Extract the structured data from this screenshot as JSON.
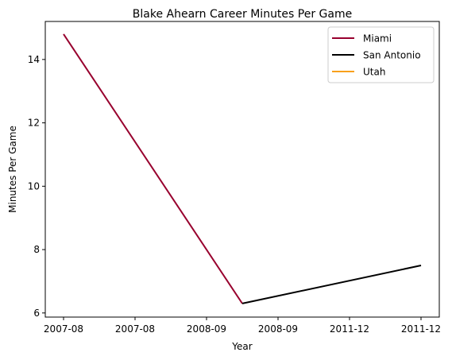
{
  "chart_data": {
    "type": "line",
    "title": "Blake Ahearn Career Minutes Per Game",
    "xlabel": "Year",
    "ylabel": "Minutes Per Game",
    "x_tick_labels": [
      "2007-08",
      "2007-08",
      "2008-09",
      "2008-09",
      "2011-12",
      "2011-12"
    ],
    "x_index_range": [
      0,
      5
    ],
    "ylim": [
      5.87,
      15.2
    ],
    "y_ticks": [
      6,
      8,
      10,
      12,
      14
    ],
    "grid": false,
    "legend_position": "top-right",
    "series": [
      {
        "name": "Miami",
        "color": "#98002E",
        "points": [
          [
            0,
            14.8
          ],
          [
            2.5,
            6.3
          ]
        ]
      },
      {
        "name": "San Antonio",
        "color": "#000000",
        "points": [
          [
            2.5,
            6.3
          ],
          [
            5,
            7.5
          ]
        ]
      },
      {
        "name": "Utah",
        "color": "#F9A01B",
        "points": []
      }
    ]
  }
}
